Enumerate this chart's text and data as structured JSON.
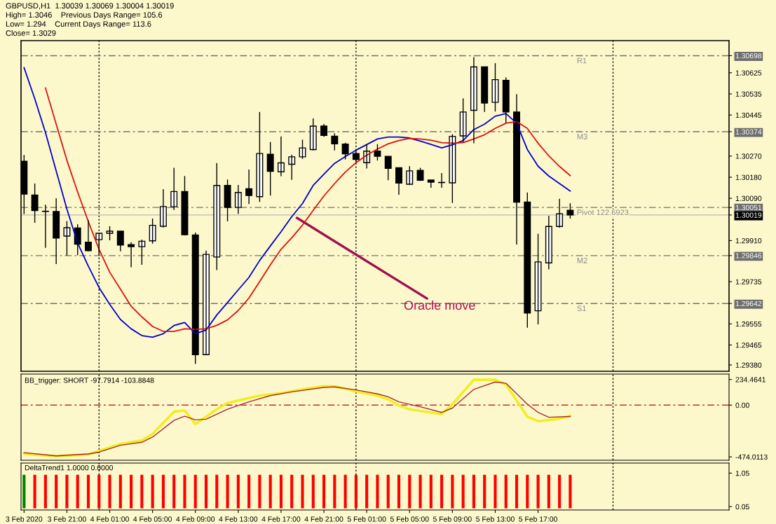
{
  "chart_data": [
    {
      "type": "candlestick",
      "title": "GBPUSD,H1  1.30039 1.30069 1.30004 1.30019",
      "annotations": [
        "High= 1.3046    Previous Days Range= 105.6",
        "Low= 1.294    Current Days Range= 113.6",
        "Close= 1.3029",
        "Oracle move"
      ],
      "x": [
        "2020-02-03T17:00",
        "2020-02-03T18:00",
        "2020-02-03T19:00",
        "2020-02-03T20:00",
        "2020-02-03T21:00",
        "2020-02-03T22:00",
        "2020-02-03T23:00",
        "2020-02-04T00:00",
        "2020-02-04T01:00",
        "2020-02-04T02:00",
        "2020-02-04T03:00",
        "2020-02-04T04:00",
        "2020-02-04T05:00",
        "2020-02-04T06:00",
        "2020-02-04T07:00",
        "2020-02-04T08:00",
        "2020-02-04T09:00",
        "2020-02-04T10:00",
        "2020-02-04T11:00",
        "2020-02-04T12:00",
        "2020-02-04T13:00",
        "2020-02-04T14:00",
        "2020-02-04T15:00",
        "2020-02-04T16:00",
        "2020-02-04T17:00",
        "2020-02-04T18:00",
        "2020-02-04T19:00",
        "2020-02-04T20:00",
        "2020-02-04T21:00",
        "2020-02-04T22:00",
        "2020-02-04T23:00",
        "2020-02-05T00:00",
        "2020-02-05T01:00",
        "2020-02-05T02:00",
        "2020-02-05T03:00",
        "2020-02-05T04:00",
        "2020-02-05T05:00",
        "2020-02-05T06:00",
        "2020-02-05T07:00",
        "2020-02-05T08:00",
        "2020-02-05T09:00",
        "2020-02-05T10:00",
        "2020-02-05T11:00",
        "2020-02-05T12:00",
        "2020-02-05T13:00",
        "2020-02-05T14:00",
        "2020-02-05T15:00",
        "2020-02-05T16:00",
        "2020-02-05T17:00",
        "2020-02-05T18:00",
        "2020-02-05T19:00",
        "2020-02-05T20:00"
      ],
      "ohlc": [
        [
          1.30248,
          1.30275,
          1.30023,
          1.30108
        ],
        [
          1.30104,
          1.30153,
          1.29986,
          1.30038
        ],
        [
          1.30035,
          1.30063,
          1.29879,
          1.30034
        ],
        [
          1.30034,
          1.3009,
          1.2981,
          1.29921
        ],
        [
          1.29929,
          1.29993,
          1.29846,
          1.29965
        ],
        [
          1.29964,
          1.29979,
          1.29848,
          1.29895
        ],
        [
          1.29903,
          1.29997,
          1.29864,
          1.29867
        ],
        [
          1.29914,
          1.29941,
          1.29847,
          1.29941
        ],
        [
          1.29941,
          1.29971,
          1.29911,
          1.2995
        ],
        [
          1.2995,
          1.2995,
          1.29864,
          1.29891
        ],
        [
          1.29893,
          1.29903,
          1.29796,
          1.29884
        ],
        [
          1.29884,
          1.29914,
          1.29807,
          1.29907
        ],
        [
          1.29909,
          1.30004,
          1.29897,
          1.29975
        ],
        [
          1.29971,
          1.30129,
          1.29966,
          1.30055
        ],
        [
          1.30054,
          1.3022,
          1.3004,
          1.30119
        ],
        [
          1.30119,
          1.30185,
          1.29932,
          1.29935
        ],
        [
          1.29934,
          1.29944,
          1.29384,
          1.29424
        ],
        [
          1.29424,
          1.29867,
          1.29424,
          1.29851
        ],
        [
          1.2984,
          1.3024,
          1.29784,
          1.30145
        ],
        [
          1.30145,
          1.3017,
          1.29992,
          1.30051
        ],
        [
          1.30051,
          1.30147,
          1.30024,
          1.30115
        ],
        [
          1.30131,
          1.30213,
          1.30066,
          1.30102
        ],
        [
          1.30097,
          1.30458,
          1.30075,
          1.30281
        ],
        [
          1.30278,
          1.3033,
          1.30102,
          1.30205
        ],
        [
          1.30203,
          1.30354,
          1.30184,
          1.30241
        ],
        [
          1.30235,
          1.30276,
          1.30169,
          1.30267
        ],
        [
          1.30267,
          1.3034,
          1.30258,
          1.30305
        ],
        [
          1.30298,
          1.30431,
          1.30294,
          1.30398
        ],
        [
          1.30398,
          1.30407,
          1.30352,
          1.30358
        ],
        [
          1.30355,
          1.30367,
          1.30294,
          1.30322
        ],
        [
          1.30321,
          1.30327,
          1.30256,
          1.3028
        ],
        [
          1.30281,
          1.30298,
          1.30244,
          1.30256
        ],
        [
          1.30242,
          1.3032,
          1.30217,
          1.30291
        ],
        [
          1.30291,
          1.30321,
          1.30251,
          1.30269
        ],
        [
          1.30269,
          1.30269,
          1.30167,
          1.30218
        ],
        [
          1.3022,
          1.3022,
          1.30105,
          1.30155
        ],
        [
          1.3015,
          1.30227,
          1.30148,
          1.30207
        ],
        [
          1.30209,
          1.3022,
          1.30164,
          1.30167
        ],
        [
          1.30168,
          1.30168,
          1.30135,
          1.30159
        ],
        [
          1.30158,
          1.30198,
          1.30135,
          1.30157
        ],
        [
          1.30156,
          1.30363,
          1.3007,
          1.30354
        ],
        [
          1.30356,
          1.30516,
          1.30329,
          1.30458
        ],
        [
          1.30465,
          1.30692,
          1.30325,
          1.3065
        ],
        [
          1.3065,
          1.3065,
          1.30458,
          1.30496
        ],
        [
          1.30499,
          1.30666,
          1.3046,
          1.30596
        ],
        [
          1.30593,
          1.30605,
          1.30413,
          1.30458
        ],
        [
          1.30458,
          1.30534,
          1.29893,
          1.30074
        ],
        [
          1.30074,
          1.30115,
          1.29539,
          1.29601
        ],
        [
          1.29611,
          1.29939,
          1.29553,
          1.29819
        ],
        [
          1.29815,
          1.30016,
          1.29787,
          1.2997
        ],
        [
          1.2997,
          1.30088,
          1.29965,
          1.30024
        ],
        [
          1.30039,
          1.30069,
          1.30004,
          1.30019
        ]
      ],
      "series": [
        {
          "type": "line",
          "color": "#0000cc",
          "values": [
            1.30647,
            1.30514,
            1.3037,
            1.30207,
            1.30044,
            1.299,
            1.29801,
            1.2971,
            1.29638,
            1.29574,
            1.29534,
            1.29505,
            1.29498,
            1.29513,
            1.29548,
            1.29561,
            1.29513,
            1.29529,
            1.29593,
            1.29646,
            1.297,
            1.29753,
            1.29825,
            1.29887,
            1.29948,
            1.30012,
            1.30068,
            1.30145,
            1.30193,
            1.30239,
            1.30268,
            1.30295,
            1.30319,
            1.30343,
            1.30351,
            1.30351,
            1.30347,
            1.30334,
            1.3032,
            1.30305,
            1.30318,
            1.30336,
            1.30383,
            1.30406,
            1.3044,
            1.30451,
            1.3041,
            1.30298,
            1.30227,
            1.30185,
            1.30153,
            1.30121
          ]
        },
        {
          "type": "line",
          "color": "#dd1111",
          "values": [
            null,
            null,
            1.3056,
            1.30406,
            1.30252,
            1.30117,
            1.29991,
            1.29873,
            1.29775,
            1.29703,
            1.2963,
            1.29585,
            1.29544,
            1.29523,
            1.29523,
            1.29534,
            1.29532,
            1.29534,
            1.29549,
            1.29572,
            1.29612,
            1.29665,
            1.29735,
            1.29807,
            1.29873,
            1.29922,
            1.29976,
            1.30039,
            1.301,
            1.30153,
            1.30202,
            1.30242,
            1.30274,
            1.303,
            1.30322,
            1.30336,
            1.30345,
            1.30343,
            1.30338,
            1.30327,
            1.30325,
            1.30327,
            1.30343,
            1.30361,
            1.30388,
            1.3041,
            1.30417,
            1.30388,
            1.30325,
            1.30271,
            1.30226,
            1.30187
          ]
        }
      ],
      "xlim": [
        "2020-02-03T16:43",
        "2020-02-06T10:50"
      ],
      "ylim": [
        1.29353,
        1.30762
      ],
      "yticks": [
        1.30625,
        1.30535,
        1.30445,
        {
          "value": 1.3027,
          "label": "1.30270"
        },
        {
          "value": 1.3018,
          "label": "1.30180"
        },
        {
          "value": 1.3009,
          "label": "1.30090"
        },
        {
          "value": 1.2991,
          "label": "1.29910"
        },
        1.29735,
        1.29555,
        1.29465,
        {
          "value": 1.2938,
          "label": "1.29380"
        }
      ],
      "y2lim": [
        1.29353,
        1.30762
      ],
      "y2ticks": [
        1.30698,
        1.30374,
        1.30051,
        1.30019,
        1.29846,
        1.29642
      ],
      "ref_lines": [
        {
          "axis": "y",
          "value": 1.30698,
          "label": "R1",
          "color": "#707070",
          "line_style": "dashed"
        },
        {
          "axis": "y",
          "value": 1.30374,
          "label": "M3",
          "color": "#707070",
          "line_style": "dashed"
        },
        {
          "axis": "y",
          "value": 1.30051,
          "label": "Pivot 122.6923",
          "color": "#707070",
          "line_style": "dashed"
        },
        {
          "axis": "y",
          "value": 1.30019,
          "color": "#b8b8b8",
          "line_style": "solid"
        },
        {
          "axis": "y",
          "value": 1.29846,
          "label": "M2",
          "color": "#707070",
          "line_style": "dashed"
        },
        {
          "axis": "y",
          "value": 1.29642,
          "label": "S1",
          "color": "#707070",
          "line_style": "dashed"
        },
        {
          "axis": "x",
          "value": "2020-02-04T00:00",
          "color": "#000000",
          "line_style": "dotted"
        },
        {
          "axis": "x",
          "value": "2020-02-05T00:00",
          "color": "#000000",
          "line_style": "dotted"
        },
        {
          "axis": "x",
          "value": "2020-02-06T00:00",
          "color": "#000000",
          "line_style": "dotted"
        }
      ],
      "tick_labels": "y"
    },
    {
      "type": "line",
      "title": "BB_trigger: SHORT -97.7914 -103.8848",
      "series": [
        {
          "type": "line",
          "color": "#f2ee22",
          "x": [
            "2020-02-03T17:00",
            "2020-02-03T20:00",
            "2020-02-03T23:00",
            "2020-02-04T00:00",
            "2020-02-04T02:00",
            "2020-02-04T04:00",
            "2020-02-04T05:00",
            "2020-02-04T07:00",
            "2020-02-04T08:00",
            "2020-02-04T09:00",
            "2020-02-04T11:00",
            "2020-02-04T12:00",
            "2020-02-04T15:00",
            "2020-02-04T17:00",
            "2020-02-04T19:00",
            "2020-02-04T21:00",
            "2020-02-04T22:00",
            "2020-02-05T00:00",
            "2020-02-05T02:00",
            "2020-02-05T03:00",
            "2020-02-05T04:00",
            "2020-02-05T05:00",
            "2020-02-05T08:00",
            "2020-02-05T09:00",
            "2020-02-05T11:00",
            "2020-02-05T13:00",
            "2020-02-05T14:00",
            "2020-02-05T16:00",
            "2020-02-05T17:00",
            "2020-02-05T19:00",
            "2020-02-05T20:00"
          ],
          "values": [
            -447,
            -469,
            -453,
            -420,
            -356,
            -322,
            -265,
            -60,
            -50,
            -174,
            -38,
            19,
            87,
            109,
            144,
            173,
            173,
            125,
            87,
            53,
            -4,
            -38,
            -83,
            8,
            232,
            232,
            189,
            -106,
            -147,
            -124,
            -98
          ]
        },
        {
          "type": "line",
          "color": "#a52a2a",
          "x": [
            "2020-02-03T17:00",
            "2020-02-03T20:00",
            "2020-02-03T23:00",
            "2020-02-04T00:00",
            "2020-02-04T02:00",
            "2020-02-04T04:00",
            "2020-02-04T05:00",
            "2020-02-04T07:00",
            "2020-02-04T08:00",
            "2020-02-04T09:00",
            "2020-02-04T10:00",
            "2020-02-04T12:00",
            "2020-02-04T14:00",
            "2020-02-04T16:00",
            "2020-02-04T18:00",
            "2020-02-04T21:00",
            "2020-02-04T22:00",
            "2020-02-05T00:00",
            "2020-02-05T02:00",
            "2020-02-05T03:00",
            "2020-02-05T04:00",
            "2020-02-05T06:00",
            "2020-02-05T08:00",
            "2020-02-05T09:00",
            "2020-02-05T11:00",
            "2020-02-05T13:00",
            "2020-02-05T14:00",
            "2020-02-05T16:00",
            "2020-02-05T17:00",
            "2020-02-05T18:00",
            "2020-02-05T20:00"
          ],
          "values": [
            -435,
            -465,
            -447,
            -431,
            -368,
            -340,
            -293,
            -140,
            -102,
            -135,
            -129,
            -38,
            30,
            87,
            121,
            162,
            167,
            139,
            103,
            76,
            30,
            -15,
            -67,
            -27,
            144,
            212,
            200,
            8,
            -67,
            -111,
            -104
          ]
        }
      ],
      "xlim": [
        "2020-02-03T16:43",
        "2020-02-06T10:50"
      ],
      "ylim": [
        -505,
        284
      ],
      "yticks": [
        234.4641,
        {
          "value": 0,
          "label": "0.00"
        },
        -474.0113
      ],
      "ref_lines": [
        {
          "axis": "y",
          "value": 0,
          "color": "#c03030",
          "line_style": "dashed"
        },
        {
          "axis": "x",
          "value": "2020-02-04T00:00",
          "color": "#000000",
          "line_style": "dotted"
        },
        {
          "axis": "x",
          "value": "2020-02-05T00:00",
          "color": "#000000",
          "line_style": "dotted"
        },
        {
          "axis": "x",
          "value": "2020-02-06T00:00",
          "color": "#000000",
          "line_style": "dotted"
        }
      ],
      "tick_labels": "y"
    },
    {
      "type": "bar",
      "title": "DeltaTrend1 1.0000 0.0000",
      "x": [
        "2020-02-03T17:00",
        "2020-02-03T18:00",
        "2020-02-03T19:00",
        "2020-02-03T20:00",
        "2020-02-03T21:00",
        "2020-02-03T22:00",
        "2020-02-03T23:00",
        "2020-02-04T00:00",
        "2020-02-04T01:00",
        "2020-02-04T02:00",
        "2020-02-04T03:00",
        "2020-02-04T04:00",
        "2020-02-04T05:00",
        "2020-02-04T06:00",
        "2020-02-04T07:00",
        "2020-02-04T08:00",
        "2020-02-04T09:00",
        "2020-02-04T10:00",
        "2020-02-04T11:00",
        "2020-02-04T12:00",
        "2020-02-04T13:00",
        "2020-02-04T14:00",
        "2020-02-04T15:00",
        "2020-02-04T16:00",
        "2020-02-04T17:00",
        "2020-02-04T18:00",
        "2020-02-04T19:00",
        "2020-02-04T20:00",
        "2020-02-04T21:00",
        "2020-02-04T22:00",
        "2020-02-04T23:00",
        "2020-02-05T00:00",
        "2020-02-05T01:00",
        "2020-02-05T02:00",
        "2020-02-05T03:00",
        "2020-02-05T04:00",
        "2020-02-05T05:00",
        "2020-02-05T06:00",
        "2020-02-05T07:00",
        "2020-02-05T08:00",
        "2020-02-05T09:00",
        "2020-02-05T10:00",
        "2020-02-05T11:00",
        "2020-02-05T12:00",
        "2020-02-05T13:00",
        "2020-02-05T14:00",
        "2020-02-05T15:00",
        "2020-02-05T16:00",
        "2020-02-05T17:00",
        "2020-02-05T18:00",
        "2020-02-05T19:00",
        "2020-02-05T20:00"
      ],
      "values": [
        1,
        1,
        1,
        1,
        1,
        1,
        1,
        1,
        1,
        1,
        1,
        1,
        1,
        1,
        1,
        1,
        1,
        1,
        1,
        1,
        1,
        1,
        1,
        1,
        1,
        1,
        1,
        1,
        1,
        1,
        1,
        1,
        1,
        1,
        1,
        1,
        1,
        1,
        1,
        1,
        1,
        1,
        1,
        1,
        1,
        1,
        1,
        1,
        1,
        1,
        1,
        1
      ],
      "colors": [
        "#008000",
        "#ff0000",
        "#ff0000",
        "#ff0000",
        "#ff0000",
        "#ff0000",
        "#ff0000",
        "#ff0000",
        "#ff0000",
        "#ff0000",
        "#ff0000",
        "#ff0000",
        "#ff0000",
        "#ff0000",
        "#ff0000",
        "#ff0000",
        "#ff0000",
        "#ff0000",
        "#ff0000",
        "#ff0000",
        "#ff0000",
        "#ff0000",
        "#ff0000",
        "#ff0000",
        "#ff0000",
        "#ff0000",
        "#ff0000",
        "#ff0000",
        "#ff0000",
        "#ff0000",
        "#ff0000",
        "#ff0000",
        "#ff0000",
        "#ff0000",
        "#ff0000",
        "#ff0000",
        "#ff0000",
        "#ff0000",
        "#ff0000",
        "#ff0000",
        "#ff0000",
        "#ff0000",
        "#ff0000",
        "#ff0000",
        "#ff0000",
        "#ff0000",
        "#ff0000",
        "#ff0000",
        "#ff0000",
        "#ff0000",
        "#ff0000",
        "#ff0000"
      ],
      "xlim": [
        "2020-02-03T16:43",
        "2020-02-06T10:50"
      ],
      "ylim": [
        -0.05,
        1.35
      ],
      "yticks": [
        1.05,
        0.05
      ],
      "xticks": [
        {
          "value": "2020-02-03T17:00",
          "label": "3 Feb 2020"
        },
        {
          "value": "2020-02-03T21:00",
          "label": "3 Feb 21:00"
        },
        {
          "value": "2020-02-04T01:00",
          "label": "4 Feb 01:00"
        },
        {
          "value": "2020-02-04T05:00",
          "label": "4 Feb 05:00"
        },
        {
          "value": "2020-02-04T09:00",
          "label": "4 Feb 09:00"
        },
        {
          "value": "2020-02-04T13:00",
          "label": "4 Feb 13:00"
        },
        {
          "value": "2020-02-04T17:00",
          "label": "4 Feb 17:00"
        },
        {
          "value": "2020-02-04T21:00",
          "label": "4 Feb 21:00"
        },
        {
          "value": "2020-02-05T01:00",
          "label": "5 Feb 01:00"
        },
        {
          "value": "2020-02-05T05:00",
          "label": "5 Feb 05:00"
        },
        {
          "value": "2020-02-05T09:00",
          "label": "5 Feb 09:00"
        },
        {
          "value": "2020-02-05T13:00",
          "label": "5 Feb 13:00"
        },
        {
          "value": "2020-02-05T17:00",
          "label": "5 Feb 17:00"
        }
      ],
      "ref_lines": [
        {
          "axis": "x",
          "value": "2020-02-04T00:00",
          "color": "#000000",
          "line_style": "dotted"
        },
        {
          "axis": "x",
          "value": "2020-02-05T00:00",
          "color": "#000000",
          "line_style": "dotted"
        },
        {
          "axis": "x",
          "value": "2020-02-06T00:00",
          "color": "#000000",
          "line_style": "dotted"
        }
      ]
    }
  ]
}
